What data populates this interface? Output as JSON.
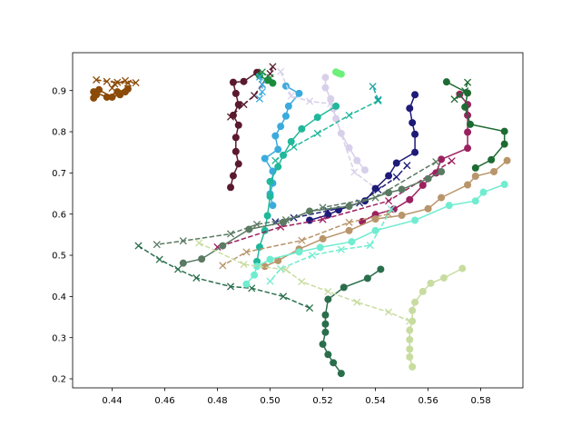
{
  "chart_data": {
    "type": "line",
    "title": "",
    "xlabel": "",
    "ylabel": "",
    "xlim": [
      0.425,
      0.596
    ],
    "ylim": [
      0.178,
      0.992
    ],
    "xticks": [
      0.44,
      0.46,
      0.48,
      0.5,
      0.52,
      0.54,
      0.56,
      0.58
    ],
    "xtick_labels": [
      "0.44",
      "0.46",
      "0.48",
      "0.50",
      "0.52",
      "0.54",
      "0.56",
      "0.58"
    ],
    "yticks": [
      0.2,
      0.3,
      0.4,
      0.5,
      0.6,
      0.7,
      0.8,
      0.9
    ],
    "ytick_labels": [
      "0.2",
      "0.3",
      "0.4",
      "0.5",
      "0.6",
      "0.7",
      "0.8",
      "0.9"
    ],
    "grid": false,
    "legend": "none",
    "series": [
      {
        "color": "#8b4a07",
        "style": "solid",
        "marker": "circle",
        "points": [
          [
            0.435,
            0.902
          ],
          [
            0.44,
            0.884
          ],
          [
            0.443,
            0.89
          ],
          [
            0.445,
            0.897
          ],
          [
            0.446,
            0.904
          ],
          [
            0.442,
            0.897
          ],
          [
            0.438,
            0.884
          ],
          [
            0.433,
            0.897
          ],
          [
            0.434,
            0.89
          ],
          [
            0.433,
            0.882
          ]
        ]
      },
      {
        "color": "#8b4a07",
        "style": "dashed",
        "marker": "x",
        "points": [
          [
            0.434,
            0.926
          ],
          [
            0.438,
            0.922
          ],
          [
            0.442,
            0.92
          ],
          [
            0.446,
            0.918
          ],
          [
            0.449,
            0.919
          ],
          [
            0.445,
            0.924
          ],
          [
            0.441,
            0.916
          ],
          [
            0.44,
            0.906
          ]
        ]
      },
      {
        "color": "#5a1a2e",
        "style": "solid",
        "marker": "circle",
        "points": [
          [
            0.495,
            0.944
          ],
          [
            0.49,
            0.922
          ],
          [
            0.486,
            0.92
          ],
          [
            0.487,
            0.893
          ],
          [
            0.488,
            0.866
          ],
          [
            0.486,
            0.84
          ],
          [
            0.488,
            0.816
          ],
          [
            0.487,
            0.786
          ],
          [
            0.487,
            0.752
          ],
          [
            0.488,
            0.722
          ],
          [
            0.486,
            0.693
          ],
          [
            0.485,
            0.665
          ]
        ]
      },
      {
        "color": "#5a1a2e",
        "style": "dashed",
        "marker": "x",
        "points": [
          [
            0.501,
            0.958
          ],
          [
            0.5,
            0.941
          ],
          [
            0.497,
            0.915
          ],
          [
            0.494,
            0.888
          ],
          [
            0.49,
            0.866
          ],
          [
            0.485,
            0.836
          ]
        ]
      },
      {
        "color": "#1a8b3c",
        "style": "solid",
        "marker": "circle",
        "points": [
          [
            0.496,
            0.936
          ],
          [
            0.499,
            0.925
          ],
          [
            0.501,
            0.918
          ]
        ]
      },
      {
        "color": "#1a8b3c",
        "style": "dashed",
        "marker": "x",
        "points": [
          [
            0.497,
            0.945
          ],
          [
            0.5,
            0.931
          ]
        ]
      },
      {
        "color": "#6cf07a",
        "style": "solid",
        "marker": "circle",
        "points": [
          [
            0.525,
            0.945
          ],
          [
            0.526,
            0.942
          ],
          [
            0.527,
            0.94
          ]
        ]
      },
      {
        "color": "#3aabdc",
        "style": "solid",
        "marker": "circle",
        "points": [
          [
            0.506,
            0.911
          ],
          [
            0.511,
            0.893
          ],
          [
            0.507,
            0.862
          ],
          [
            0.506,
            0.838
          ],
          [
            0.504,
            0.813
          ],
          [
            0.502,
            0.79
          ],
          [
            0.503,
            0.757
          ],
          [
            0.498,
            0.735
          ],
          [
            0.501,
            0.704
          ],
          [
            0.501,
            0.675
          ],
          [
            0.5,
            0.649
          ],
          [
            0.501,
            0.621
          ]
        ]
      },
      {
        "color": "#3aabdc",
        "style": "dashed",
        "marker": "x",
        "points": [
          [
            0.496,
            0.933
          ],
          [
            0.497,
            0.915
          ],
          [
            0.497,
            0.897
          ],
          [
            0.496,
            0.88
          ]
        ]
      },
      {
        "color": "#d8d0ea",
        "style": "solid",
        "marker": "circle",
        "points": [
          [
            0.521,
            0.932
          ],
          [
            0.521,
            0.907
          ],
          [
            0.523,
            0.88
          ],
          [
            0.524,
            0.856
          ],
          [
            0.525,
            0.832
          ],
          [
            0.527,
            0.796
          ],
          [
            0.53,
            0.761
          ],
          [
            0.533,
            0.73
          ],
          [
            0.536,
            0.707
          ]
        ]
      },
      {
        "color": "#d8d0ea",
        "style": "dashed",
        "marker": "x",
        "points": [
          [
            0.504,
            0.946
          ],
          [
            0.508,
            0.887
          ],
          [
            0.515,
            0.874
          ],
          [
            0.523,
            0.868
          ],
          [
            0.532,
            0.702
          ],
          [
            0.54,
            0.663
          ]
        ]
      },
      {
        "color": "#20b89a",
        "style": "solid",
        "marker": "circle",
        "points": [
          [
            0.525,
            0.862
          ],
          [
            0.518,
            0.835
          ],
          [
            0.512,
            0.807
          ],
          [
            0.508,
            0.776
          ],
          [
            0.505,
            0.743
          ],
          [
            0.503,
            0.715
          ],
          [
            0.5,
            0.679
          ],
          [
            0.5,
            0.643
          ],
          [
            0.499,
            0.596
          ],
          [
            0.498,
            0.56
          ],
          [
            0.496,
            0.52
          ],
          [
            0.495,
            0.485
          ]
        ]
      },
      {
        "color": "#20b89a",
        "style": "dashed",
        "marker": "x",
        "points": [
          [
            0.541,
            0.875
          ],
          [
            0.53,
            0.84
          ],
          [
            0.518,
            0.796
          ],
          [
            0.509,
            0.763
          ],
          [
            0.502,
            0.73
          ]
        ]
      },
      {
        "color": "#1aa3a3",
        "style": "dashed",
        "marker": "x",
        "points": [
          [
            0.541,
            0.878
          ],
          [
            0.539,
            0.91
          ]
        ]
      },
      {
        "color": "#1e1a78",
        "style": "solid",
        "marker": "circle",
        "points": [
          [
            0.555,
            0.89
          ],
          [
            0.553,
            0.857
          ],
          [
            0.554,
            0.822
          ],
          [
            0.555,
            0.794
          ],
          [
            0.555,
            0.75
          ],
          [
            0.548,
            0.724
          ],
          [
            0.545,
            0.693
          ],
          [
            0.54,
            0.662
          ],
          [
            0.536,
            0.632
          ],
          [
            0.526,
            0.61
          ],
          [
            0.522,
            0.598
          ],
          [
            0.515,
            0.585
          ]
        ]
      },
      {
        "color": "#1e1a78",
        "style": "dashed",
        "marker": "x",
        "points": [
          [
            0.552,
            0.718
          ],
          [
            0.548,
            0.69
          ],
          [
            0.541,
            0.659
          ],
          [
            0.534,
            0.627
          ],
          [
            0.522,
            0.608
          ],
          [
            0.509,
            0.591
          ],
          [
            0.502,
            0.581
          ]
        ]
      },
      {
        "color": "#9c2060",
        "style": "solid",
        "marker": "circle",
        "points": [
          [
            0.572,
            0.891
          ],
          [
            0.575,
            0.866
          ],
          [
            0.575,
            0.84
          ],
          [
            0.575,
            0.799
          ],
          [
            0.575,
            0.76
          ],
          [
            0.565,
            0.733
          ],
          [
            0.563,
            0.7
          ],
          [
            0.558,
            0.67
          ],
          [
            0.553,
            0.635
          ],
          [
            0.547,
            0.612
          ],
          [
            0.54,
            0.599
          ],
          [
            0.535,
            0.582
          ]
        ]
      },
      {
        "color": "#9c2060",
        "style": "dashed",
        "marker": "x",
        "points": [
          [
            0.569,
            0.729
          ],
          [
            0.545,
            0.632
          ],
          [
            0.52,
            0.587
          ],
          [
            0.504,
            0.569
          ],
          [
            0.48,
            0.52
          ]
        ]
      },
      {
        "color": "#b8956a",
        "style": "solid",
        "marker": "circle",
        "points": [
          [
            0.59,
            0.73
          ],
          [
            0.585,
            0.703
          ],
          [
            0.578,
            0.692
          ],
          [
            0.575,
            0.671
          ],
          [
            0.565,
            0.64
          ],
          [
            0.56,
            0.613
          ],
          [
            0.55,
            0.597
          ],
          [
            0.54,
            0.588
          ],
          [
            0.53,
            0.56
          ],
          [
            0.52,
            0.54
          ],
          [
            0.511,
            0.515
          ],
          [
            0.503,
            0.487
          ],
          [
            0.498,
            0.473
          ]
        ]
      },
      {
        "color": "#b8956a",
        "style": "dashed",
        "marker": "x",
        "points": [
          [
            0.545,
            0.6
          ],
          [
            0.53,
            0.58
          ],
          [
            0.512,
            0.536
          ],
          [
            0.491,
            0.508
          ],
          [
            0.482,
            0.475
          ]
        ]
      },
      {
        "color": "#1e6b32",
        "style": "solid",
        "marker": "circle",
        "points": [
          [
            0.567,
            0.921
          ],
          [
            0.575,
            0.894
          ],
          [
            0.574,
            0.86
          ],
          [
            0.576,
            0.818
          ],
          [
            0.589,
            0.801
          ],
          [
            0.589,
            0.77
          ],
          [
            0.584,
            0.732
          ],
          [
            0.578,
            0.712
          ]
        ]
      },
      {
        "color": "#1e6b32",
        "style": "dashed",
        "marker": "x",
        "points": [
          [
            0.575,
            0.92
          ],
          [
            0.574,
            0.899
          ],
          [
            0.572,
            0.888
          ],
          [
            0.57,
            0.879
          ]
        ]
      },
      {
        "color": "#5a7a62",
        "style": "solid",
        "marker": "circle",
        "points": [
          [
            0.565,
            0.703
          ],
          [
            0.56,
            0.686
          ],
          [
            0.55,
            0.66
          ],
          [
            0.545,
            0.652
          ],
          [
            0.53,
            0.619
          ],
          [
            0.515,
            0.607
          ],
          [
            0.505,
            0.58
          ],
          [
            0.492,
            0.563
          ],
          [
            0.482,
            0.523
          ],
          [
            0.474,
            0.491
          ],
          [
            0.467,
            0.481
          ]
        ]
      },
      {
        "color": "#5a7a62",
        "style": "dashed",
        "marker": "x",
        "points": [
          [
            0.563,
            0.727
          ],
          [
            0.54,
            0.64
          ],
          [
            0.52,
            0.616
          ],
          [
            0.506,
            0.586
          ],
          [
            0.495,
            0.575
          ],
          [
            0.485,
            0.552
          ],
          [
            0.467,
            0.535
          ],
          [
            0.457,
            0.526
          ]
        ]
      },
      {
        "color": "#2a6e4c",
        "style": "solid",
        "marker": "circle",
        "points": [
          [
            0.542,
            0.466
          ],
          [
            0.537,
            0.444
          ],
          [
            0.528,
            0.422
          ],
          [
            0.522,
            0.393
          ],
          [
            0.521,
            0.355
          ],
          [
            0.521,
            0.333
          ],
          [
            0.521,
            0.313
          ],
          [
            0.52,
            0.284
          ],
          [
            0.522,
            0.259
          ],
          [
            0.524,
            0.239
          ],
          [
            0.527,
            0.213
          ]
        ]
      },
      {
        "color": "#2a6e4c",
        "style": "dashed",
        "marker": "x",
        "points": [
          [
            0.45,
            0.523
          ],
          [
            0.458,
            0.49
          ],
          [
            0.465,
            0.466
          ],
          [
            0.472,
            0.445
          ],
          [
            0.485,
            0.424
          ],
          [
            0.493,
            0.42
          ],
          [
            0.505,
            0.4
          ],
          [
            0.515,
            0.372
          ]
        ]
      },
      {
        "color": "#70ecd0",
        "style": "solid",
        "marker": "circle",
        "points": [
          [
            0.589,
            0.672
          ],
          [
            0.581,
            0.653
          ],
          [
            0.578,
            0.632
          ],
          [
            0.568,
            0.621
          ],
          [
            0.555,
            0.585
          ],
          [
            0.54,
            0.56
          ],
          [
            0.531,
            0.533
          ],
          [
            0.519,
            0.519
          ],
          [
            0.511,
            0.508
          ],
          [
            0.5,
            0.49
          ],
          [
            0.495,
            0.473
          ],
          [
            0.494,
            0.452
          ],
          [
            0.491,
            0.43
          ]
        ]
      },
      {
        "color": "#70ecd0",
        "style": "dashed",
        "marker": "x",
        "points": [
          [
            0.546,
            0.612
          ],
          [
            0.538,
            0.524
          ],
          [
            0.527,
            0.514
          ],
          [
            0.516,
            0.5
          ],
          [
            0.504,
            0.467
          ],
          [
            0.5,
            0.437
          ]
        ]
      },
      {
        "color": "#c8dca0",
        "style": "solid",
        "marker": "circle",
        "points": [
          [
            0.573,
            0.468
          ],
          [
            0.566,
            0.445
          ],
          [
            0.561,
            0.432
          ],
          [
            0.558,
            0.412
          ],
          [
            0.555,
            0.386
          ],
          [
            0.554,
            0.366
          ],
          [
            0.554,
            0.34
          ],
          [
            0.553,
            0.318
          ],
          [
            0.553,
            0.295
          ],
          [
            0.553,
            0.272
          ],
          [
            0.553,
            0.253
          ],
          [
            0.554,
            0.229
          ]
        ]
      },
      {
        "color": "#c8dca0",
        "style": "dashed",
        "marker": "x",
        "points": [
          [
            0.473,
            0.53
          ],
          [
            0.49,
            0.478
          ],
          [
            0.506,
            0.465
          ],
          [
            0.512,
            0.436
          ],
          [
            0.522,
            0.412
          ],
          [
            0.533,
            0.386
          ],
          [
            0.545,
            0.362
          ],
          [
            0.553,
            0.34
          ]
        ]
      }
    ]
  }
}
